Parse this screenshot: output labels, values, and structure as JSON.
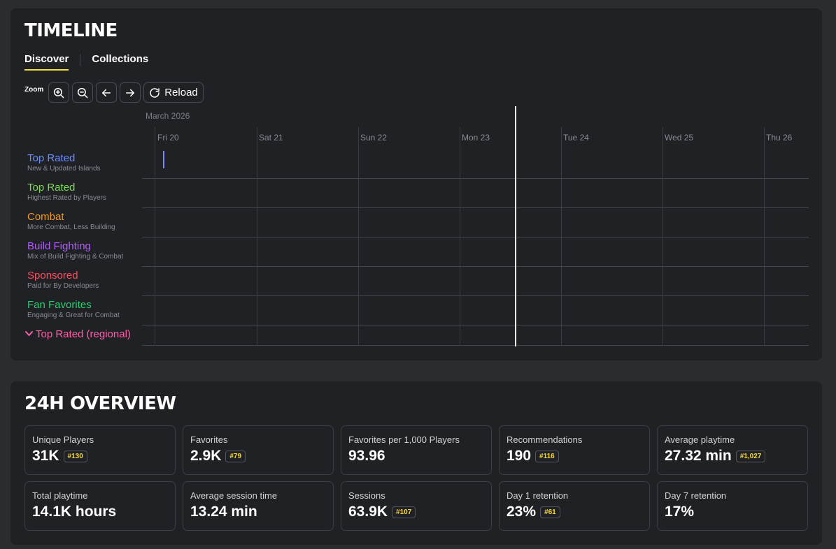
{
  "timeline": {
    "title": "TIMELINE",
    "tabs": [
      {
        "label": "Discover",
        "active": true
      },
      {
        "label": "Collections",
        "active": false
      }
    ],
    "zoom_label": "Zoom",
    "toolbar": {
      "zoom_in_icon": "zoom-in-icon",
      "zoom_out_icon": "zoom-out-icon",
      "prev_icon": "arrow-left-icon",
      "next_icon": "arrow-right-icon",
      "reload_label": "Reload",
      "reload_icon": "refresh-icon"
    },
    "month": "March 2026",
    "days": [
      "Fri 20",
      "Sat 21",
      "Sun 22",
      "Mon 23",
      "Tue 24",
      "Wed 25",
      "Thu 26"
    ],
    "rows": [
      {
        "title": "Top Rated",
        "subtitle": "New & Updated Islands",
        "color": "#6b8cff"
      },
      {
        "title": "Top Rated",
        "subtitle": "Highest Rated by Players",
        "color": "#7ed957"
      },
      {
        "title": "Combat",
        "subtitle": "More Combat, Less Building",
        "color": "#f59a23"
      },
      {
        "title": "Build Fighting",
        "subtitle": "Mix of Build Fighting & Combat",
        "color": "#b25cff"
      },
      {
        "title": "Sponsored",
        "subtitle": "Paid for By Developers",
        "color": "#ff4d5e"
      },
      {
        "title": "Fan Favorites",
        "subtitle": "Engaging & Great for Combat",
        "color": "#2ecc71"
      }
    ],
    "collapsed_row": {
      "title": "Top Rated (regional)",
      "color": "#ff5fa8",
      "icon": "chevron-down-icon"
    }
  },
  "overview": {
    "title": "24H OVERVIEW",
    "stats": [
      {
        "label": "Unique Players",
        "value": "31K",
        "rank": "#130"
      },
      {
        "label": "Favorites",
        "value": "2.9K",
        "rank": "#79"
      },
      {
        "label": "Favorites per 1,000 Players",
        "value": "93.96",
        "rank": null
      },
      {
        "label": "Recommendations",
        "value": "190",
        "rank": "#116"
      },
      {
        "label": "Average playtime",
        "value": "27.32 min",
        "rank": "#1,027"
      },
      {
        "label": "Total playtime",
        "value": "14.1K hours",
        "rank": null
      },
      {
        "label": "Average session time",
        "value": "13.24 min",
        "rank": null
      },
      {
        "label": "Sessions",
        "value": "63.9K",
        "rank": "#107"
      },
      {
        "label": "Day 1 retention",
        "value": "23%",
        "rank": "#61"
      },
      {
        "label": "Day 7 retention",
        "value": "17%",
        "rank": null
      }
    ]
  }
}
